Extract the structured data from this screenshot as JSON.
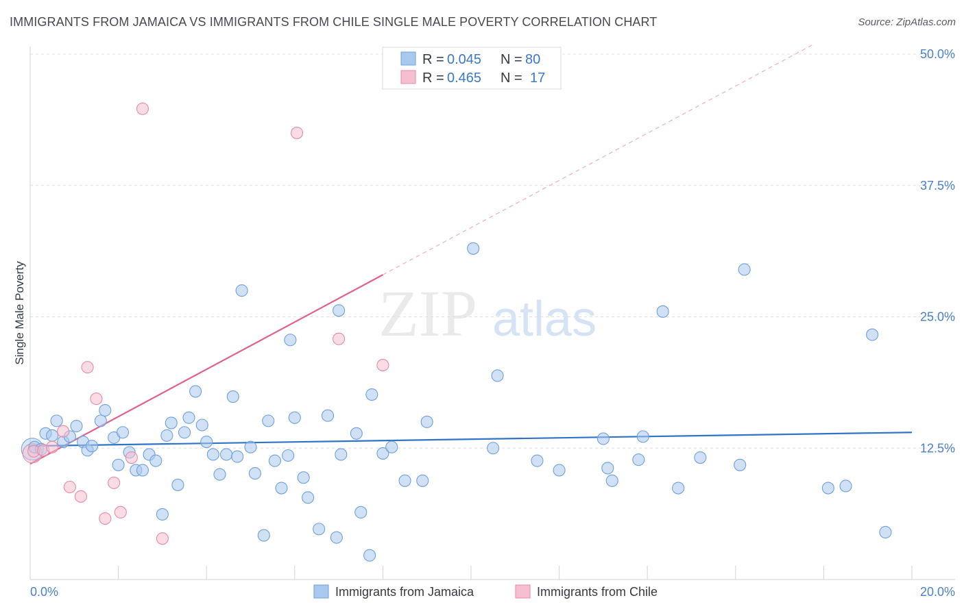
{
  "title": "IMMIGRANTS FROM JAMAICA VS IMMIGRANTS FROM CHILE SINGLE MALE POVERTY CORRELATION CHART",
  "source": "Source: ZipAtlas.com",
  "watermark": {
    "zip": "ZIP",
    "atlas": "atlas"
  },
  "chart_data": {
    "type": "scatter",
    "title": "IMMIGRANTS FROM JAMAICA VS IMMIGRANTS FROM CHILE SINGLE MALE POVERTY CORRELATION CHART",
    "xlabel": "",
    "ylabel": "Single Male Poverty",
    "xlim": [
      0,
      20
    ],
    "ylim": [
      0,
      50
    ],
    "x_tick_labels": [
      "0.0%",
      "20.0%"
    ],
    "y_ticks": [
      12.5,
      25.0,
      37.5,
      50.0
    ],
    "y_tick_labels": [
      "12.5%",
      "25.0%",
      "37.5%",
      "50.0%"
    ],
    "legend": {
      "jamaica": {
        "r_label": "R =",
        "r_value": "0.045",
        "n_label": "N =",
        "n_value": "80"
      },
      "chile": {
        "r_label": "R =",
        "r_value": "0.465",
        "n_label": "N =",
        "n_value": "17"
      }
    },
    "series": [
      {
        "name": "Immigrants from Jamaica",
        "color": "#a9c8ee",
        "stroke": "#6f9fdb",
        "line_color": "#2f74c8",
        "trend": {
          "x0": 0,
          "y0": 12.7,
          "x1": 20,
          "y1": 14.0
        },
        "points": [
          [
            0.1,
            12.6
          ],
          [
            0.25,
            12.4
          ],
          [
            0.35,
            13.9
          ],
          [
            0.5,
            13.7
          ],
          [
            0.6,
            15.1
          ],
          [
            0.75,
            13.1
          ],
          [
            0.9,
            13.6
          ],
          [
            1.05,
            14.6
          ],
          [
            1.2,
            13.1
          ],
          [
            1.3,
            12.3
          ],
          [
            1.4,
            12.7
          ],
          [
            1.6,
            15.1
          ],
          [
            1.7,
            16.1
          ],
          [
            1.9,
            13.5
          ],
          [
            2.0,
            10.9
          ],
          [
            2.1,
            14.0
          ],
          [
            2.25,
            12.1
          ],
          [
            2.4,
            10.4
          ],
          [
            2.55,
            10.4
          ],
          [
            2.7,
            11.9
          ],
          [
            2.85,
            11.3
          ],
          [
            3.0,
            6.2
          ],
          [
            3.1,
            13.7
          ],
          [
            3.2,
            14.9
          ],
          [
            3.35,
            9.0
          ],
          [
            3.5,
            14.0
          ],
          [
            3.6,
            15.4
          ],
          [
            3.75,
            17.9
          ],
          [
            3.9,
            14.7
          ],
          [
            4.0,
            13.1
          ],
          [
            4.15,
            11.9
          ],
          [
            4.3,
            10.0
          ],
          [
            4.45,
            11.9
          ],
          [
            4.6,
            17.4
          ],
          [
            4.7,
            11.7
          ],
          [
            4.8,
            27.5
          ],
          [
            5.0,
            12.6
          ],
          [
            5.1,
            10.1
          ],
          [
            5.3,
            4.2
          ],
          [
            5.4,
            15.1
          ],
          [
            5.55,
            11.3
          ],
          [
            5.7,
            8.7
          ],
          [
            5.85,
            11.8
          ],
          [
            5.9,
            22.8
          ],
          [
            6.0,
            15.4
          ],
          [
            6.2,
            9.7
          ],
          [
            6.3,
            7.8
          ],
          [
            6.55,
            4.8
          ],
          [
            6.75,
            15.6
          ],
          [
            6.95,
            4.0
          ],
          [
            7.0,
            25.6
          ],
          [
            7.05,
            11.9
          ],
          [
            7.4,
            13.9
          ],
          [
            7.5,
            6.4
          ],
          [
            7.7,
            2.3
          ],
          [
            7.75,
            17.6
          ],
          [
            8.0,
            12.0
          ],
          [
            8.2,
            12.6
          ],
          [
            8.5,
            9.4
          ],
          [
            8.9,
            9.4
          ],
          [
            9.0,
            15.0
          ],
          [
            10.05,
            31.5
          ],
          [
            10.5,
            12.5
          ],
          [
            10.6,
            19.4
          ],
          [
            11.5,
            11.3
          ],
          [
            12.0,
            10.4
          ],
          [
            13.0,
            13.4
          ],
          [
            13.1,
            10.6
          ],
          [
            13.2,
            9.4
          ],
          [
            13.8,
            11.4
          ],
          [
            13.9,
            13.6
          ],
          [
            14.35,
            25.5
          ],
          [
            14.7,
            8.7
          ],
          [
            15.2,
            11.6
          ],
          [
            16.1,
            10.9
          ],
          [
            16.2,
            29.5
          ],
          [
            18.1,
            8.7
          ],
          [
            18.5,
            8.9
          ],
          [
            19.1,
            23.3
          ],
          [
            19.4,
            4.5
          ]
        ]
      },
      {
        "name": "Immigrants from Chile",
        "color": "#f6bfd0",
        "stroke": "#e68aa8",
        "line_color": "#e0628c",
        "trend": {
          "x0": 0,
          "y0": 11.0,
          "x1": 8.0,
          "y1": 29.0
        },
        "trend_ext": {
          "x0": 8.0,
          "y0": 29.0,
          "x1": 17.8,
          "y1": 51.0
        },
        "points": [
          [
            0.08,
            12.2
          ],
          [
            0.3,
            12.3
          ],
          [
            0.5,
            12.6
          ],
          [
            0.75,
            14.1
          ],
          [
            0.9,
            8.8
          ],
          [
            1.15,
            7.9
          ],
          [
            1.3,
            20.2
          ],
          [
            1.5,
            17.2
          ],
          [
            1.7,
            5.8
          ],
          [
            1.9,
            9.2
          ],
          [
            2.05,
            6.4
          ],
          [
            2.3,
            11.6
          ],
          [
            2.55,
            44.8
          ],
          [
            3.0,
            3.9
          ],
          [
            6.05,
            42.5
          ],
          [
            7.0,
            22.9
          ],
          [
            8.0,
            20.4
          ]
        ]
      }
    ]
  },
  "bottom_legend": {
    "jamaica": "Immigrants from Jamaica",
    "chile": "Immigrants from Chile"
  }
}
